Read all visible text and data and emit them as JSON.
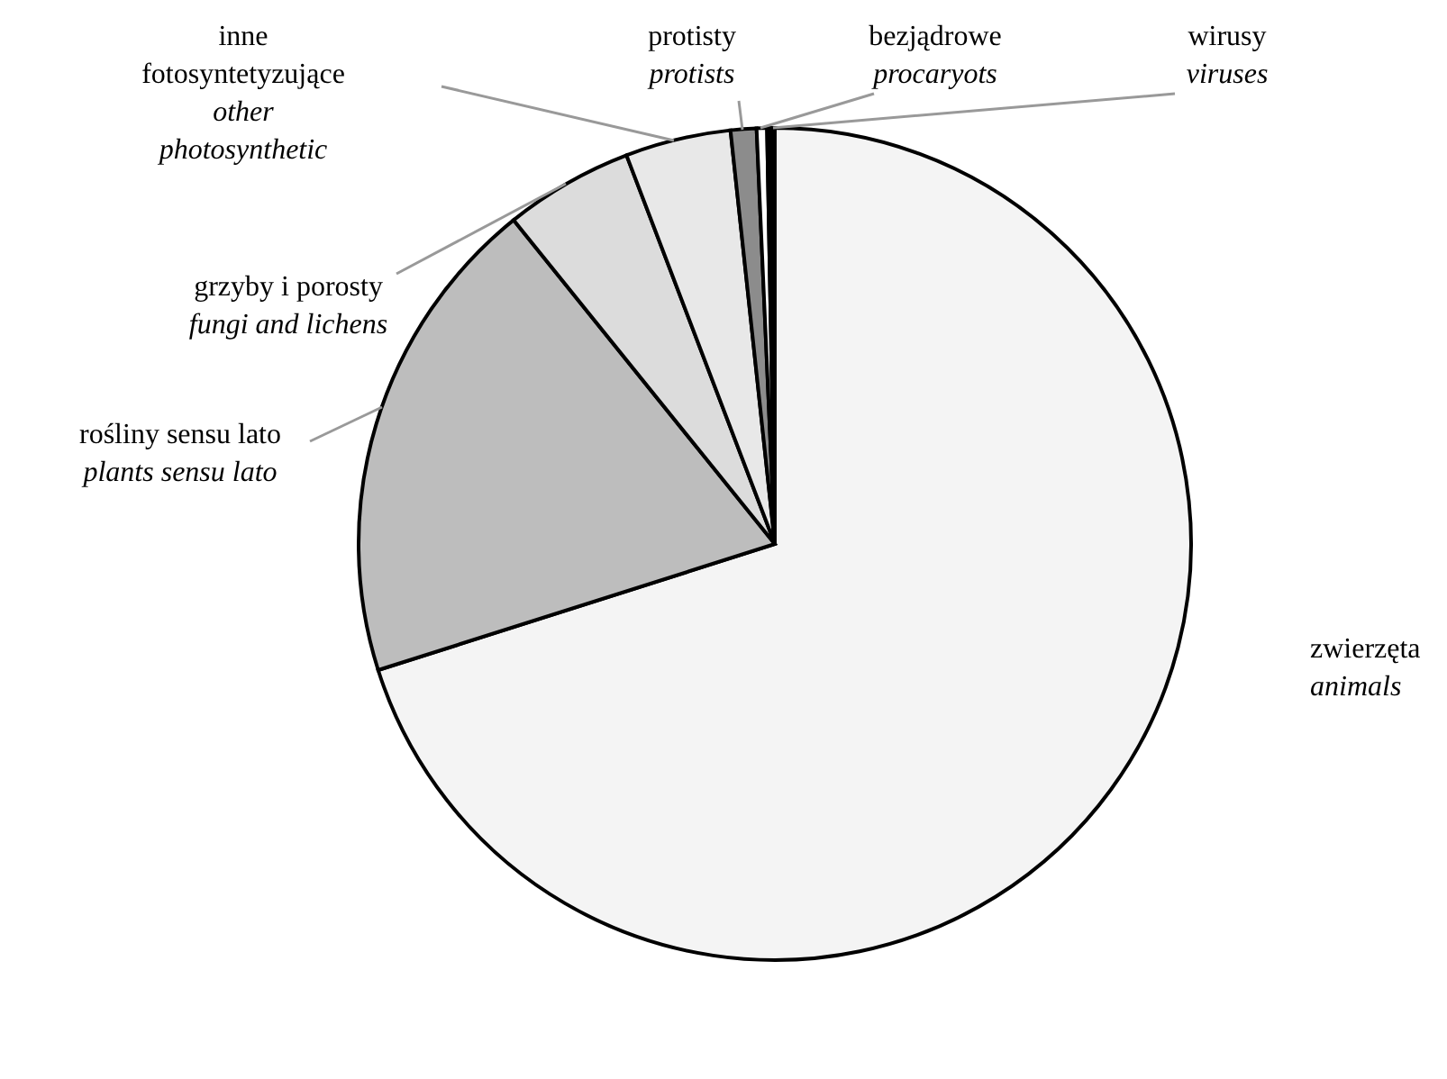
{
  "chart_data": {
    "type": "pie",
    "categories": [
      "zwierzęta\nanimals",
      "rośliny sensu lato\nplants sensu lato",
      "grzyby  i porosty\nfungi and lichens",
      "inne\nfotosyntetyzujące\nother\nphotosynthetic",
      "protisty\nprotists",
      "bezjądrowe\nprocaryots",
      "wirusy\nviruses"
    ],
    "values": [
      70.1,
      19.1,
      5.0,
      4.1,
      1.0,
      0.4,
      0.3
    ],
    "colors": [
      "#f4f4f4",
      "#bdbdbd",
      "#dcdcdc",
      "#e8e8e8",
      "#8c8c8c",
      "#ffffff",
      "#000000"
    ],
    "legend": false
  }
}
